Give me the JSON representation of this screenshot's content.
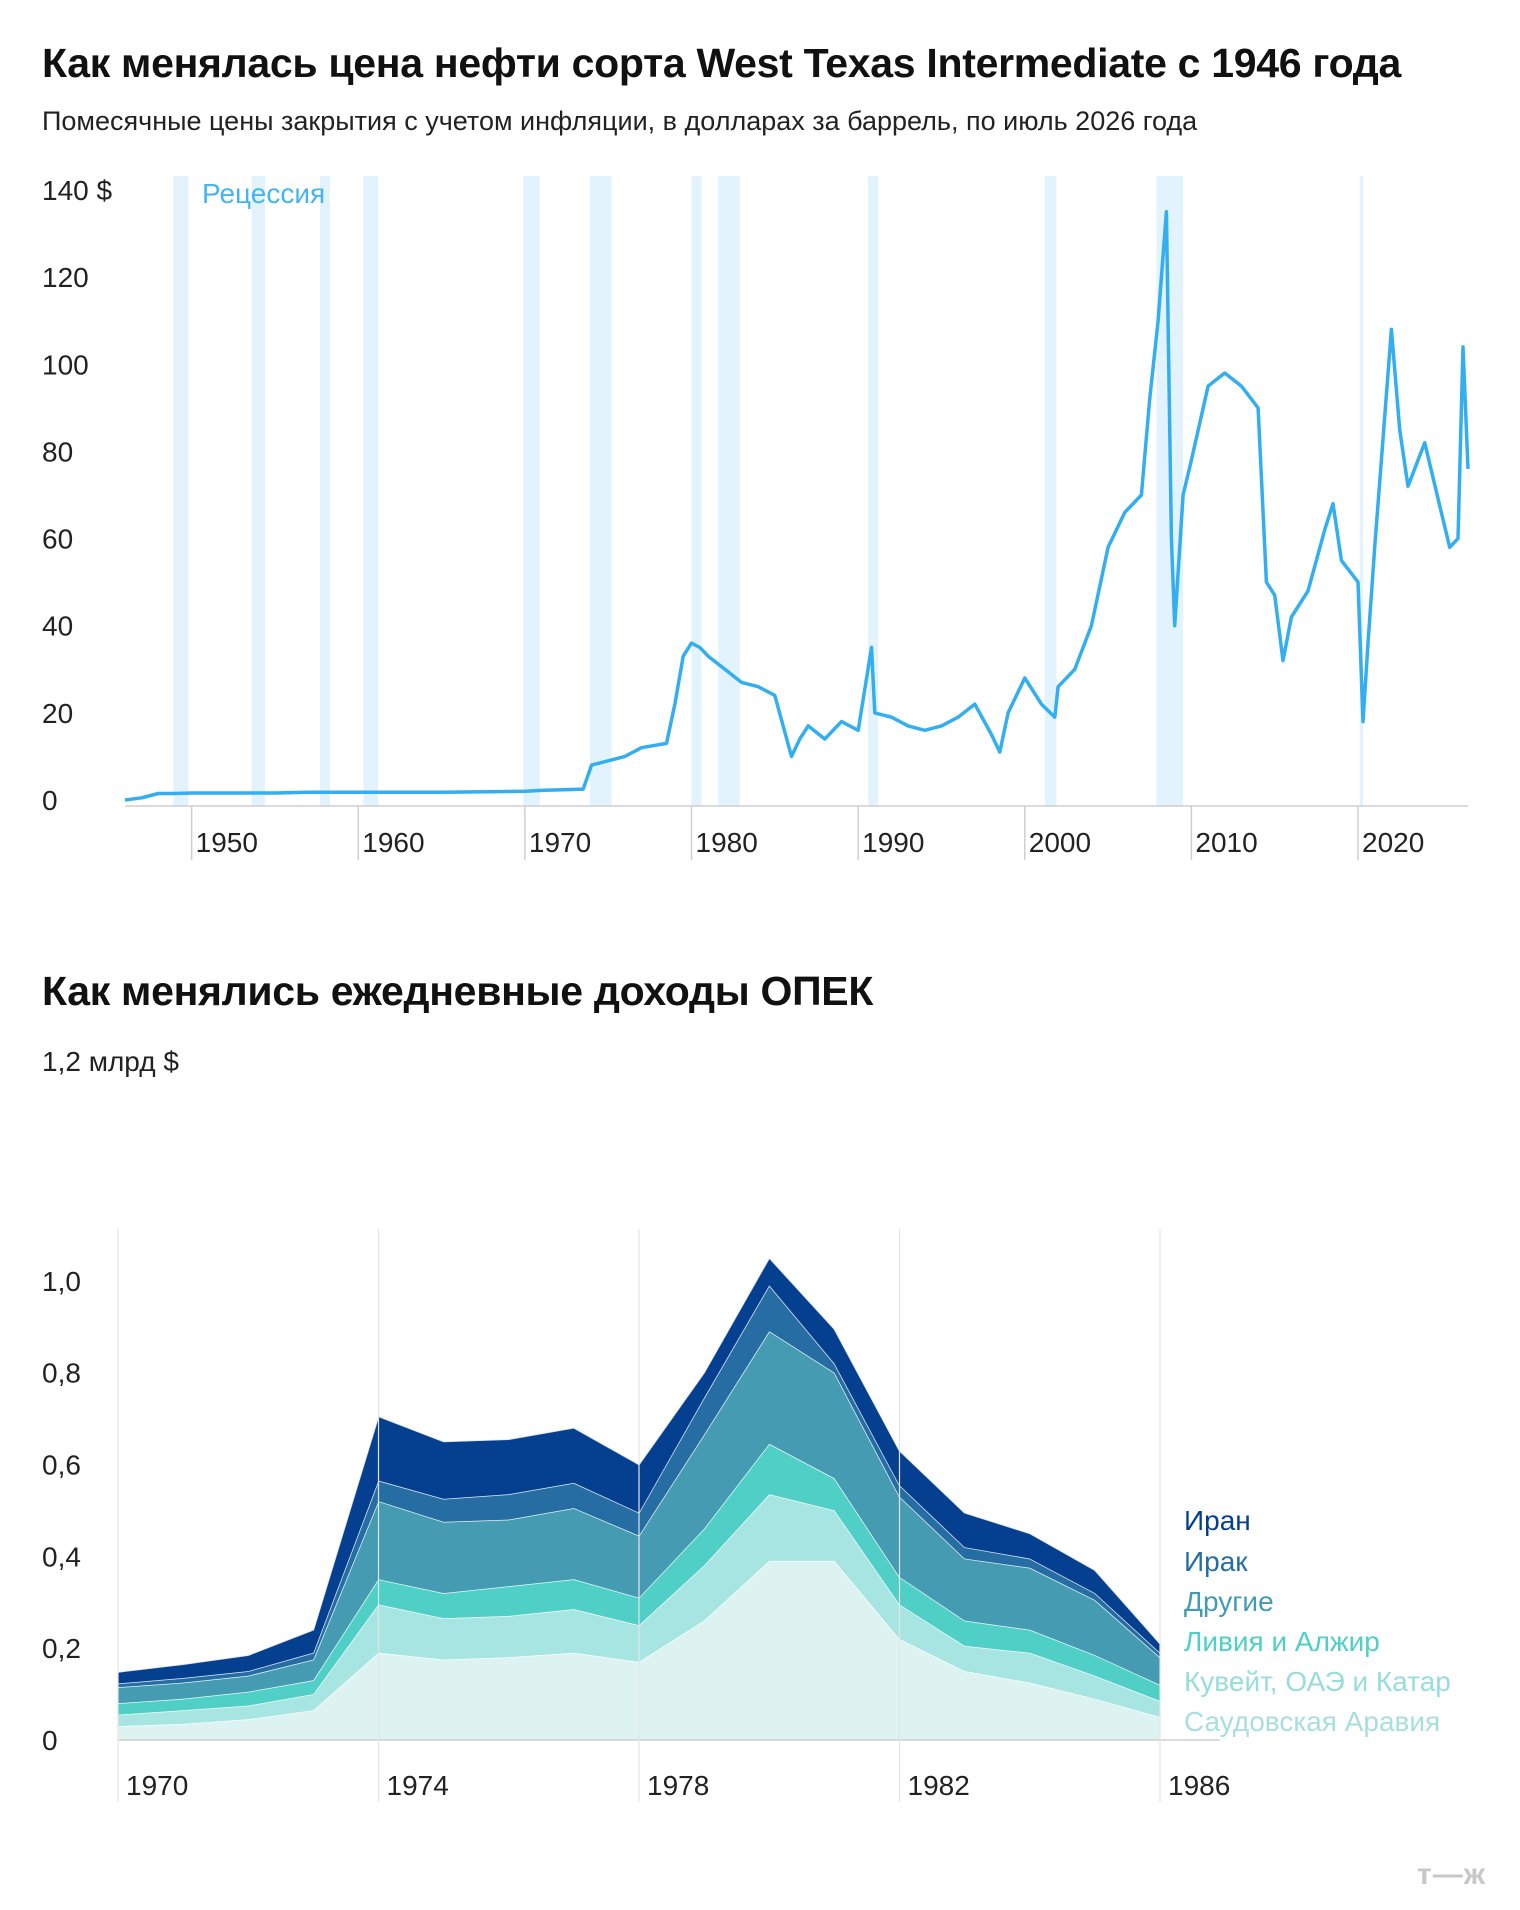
{
  "colors": {
    "line": "#33aef0",
    "recession": "#e3f3fd",
    "recession_label": "#45b4f2",
    "layers": [
      "#dcf3f2",
      "#a7e5e2",
      "#4fcfc5",
      "#459bb1",
      "#256da3",
      "#053f8f"
    ]
  },
  "chart_data": [
    {
      "type": "line",
      "title": "Как менялась цена нефти сорта West Texas Intermediate с 1946 года",
      "subtitle": "Помесячные цены закрытия с учетом инфляции, в долларах за баррель, по июль 2026 года",
      "recession_label": "Рецессия",
      "y_top_label": "140 $",
      "yticks": [
        0,
        20,
        40,
        60,
        80,
        100,
        120
      ],
      "xticks": [
        1950,
        1960,
        1970,
        1980,
        1990,
        2000,
        2010,
        2020
      ],
      "xlim": [
        1946,
        2026.6
      ],
      "ylim": [
        0,
        140
      ],
      "grid": false,
      "recessions": [
        [
          1948.9,
          1949.8
        ],
        [
          1953.6,
          1954.4
        ],
        [
          1957.7,
          1958.3
        ],
        [
          1960.3,
          1961.2
        ],
        [
          1969.9,
          1970.9
        ],
        [
          1973.9,
          1975.2
        ],
        [
          1980.0,
          1980.6
        ],
        [
          1981.6,
          1982.9
        ],
        [
          1990.6,
          1991.2
        ],
        [
          2001.2,
          2001.9
        ],
        [
          2007.9,
          2009.5
        ],
        [
          2020.1,
          2020.3
        ]
      ],
      "x": [
        1946,
        1947,
        1948,
        1949,
        1950,
        1955,
        1957,
        1960,
        1965,
        1970,
        1971,
        1973.5,
        1974,
        1975,
        1976,
        1977,
        1978.5,
        1979,
        1979.5,
        1980,
        1980.5,
        1981,
        1982,
        1983,
        1984,
        1985,
        1986,
        1986.5,
        1987,
        1988,
        1989,
        1990,
        1990.8,
        1991,
        1992,
        1993,
        1994,
        1995,
        1996,
        1997,
        1998,
        1998.5,
        1999,
        2000,
        2001,
        2001.8,
        2002,
        2003,
        2004,
        2005,
        2006,
        2007,
        2007.5,
        2008,
        2008.5,
        2008.8,
        2009,
        2009.5,
        2010,
        2011,
        2012,
        2013,
        2014,
        2014.5,
        2015,
        2015.5,
        2016,
        2017,
        2018,
        2018.5,
        2019,
        2020,
        2020.3,
        2020.6,
        2021,
        2022,
        2022.5,
        2023,
        2024,
        2025,
        2025.5,
        2026,
        2026.3,
        2026.6
      ],
      "y": [
        0,
        0.5,
        1.5,
        1.5,
        1.6,
        1.6,
        1.8,
        1.8,
        1.8,
        2.0,
        2.2,
        2.5,
        8,
        9,
        10,
        12,
        13,
        22,
        33,
        36,
        35,
        33,
        30,
        27,
        26,
        24,
        10,
        14,
        17,
        14,
        18,
        16,
        35,
        20,
        19,
        17,
        16,
        17,
        19,
        22,
        15,
        11,
        20,
        28,
        22,
        19,
        26,
        30,
        40,
        58,
        66,
        70,
        92,
        110,
        135,
        60,
        40,
        70,
        78,
        95,
        98,
        95,
        90,
        50,
        47,
        32,
        42,
        48,
        62,
        68,
        55,
        50,
        18,
        36,
        58,
        108,
        85,
        72,
        82,
        66,
        58,
        60,
        104,
        76
      ]
    },
    {
      "type": "area",
      "title": "Как менялись ежедневные доходы ОПЕК",
      "y_top_label": "1,2 млрд $",
      "yticks": [
        "0",
        "0,2",
        "0,4",
        "0,6",
        "0,8",
        "1,0"
      ],
      "ytick_values": [
        0,
        0.2,
        0.4,
        0.6,
        0.8,
        1.0
      ],
      "ylim": [
        0,
        1.2
      ],
      "xticks": [
        "1970",
        "1974",
        "1978",
        "1982",
        "1986"
      ],
      "xtick_values": [
        1970,
        1974,
        1978,
        1982,
        1986
      ],
      "x": [
        1970,
        1971,
        1972,
        1973,
        1974,
        1975,
        1976,
        1977,
        1978,
        1979,
        1980,
        1981,
        1982,
        1983,
        1984,
        1985,
        1986
      ],
      "series": [
        {
          "name": "Саудовская Аравия",
          "values": [
            0.03,
            0.035,
            0.045,
            0.065,
            0.19,
            0.175,
            0.18,
            0.19,
            0.17,
            0.26,
            0.39,
            0.39,
            0.22,
            0.15,
            0.125,
            0.09,
            0.05
          ]
        },
        {
          "name": "Кувейт, ОАЭ и Катар",
          "values": [
            0.025,
            0.03,
            0.03,
            0.035,
            0.105,
            0.09,
            0.09,
            0.095,
            0.08,
            0.12,
            0.145,
            0.11,
            0.075,
            0.055,
            0.065,
            0.05,
            0.035
          ]
        },
        {
          "name": "Ливия и Алжир",
          "values": [
            0.025,
            0.025,
            0.03,
            0.03,
            0.055,
            0.055,
            0.065,
            0.065,
            0.06,
            0.08,
            0.11,
            0.07,
            0.06,
            0.055,
            0.05,
            0.045,
            0.035
          ]
        },
        {
          "name": "Другие",
          "values": [
            0.035,
            0.035,
            0.035,
            0.045,
            0.17,
            0.155,
            0.145,
            0.155,
            0.135,
            0.205,
            0.245,
            0.23,
            0.175,
            0.135,
            0.135,
            0.12,
            0.06
          ]
        },
        {
          "name": "Ирак",
          "values": [
            0.008,
            0.01,
            0.01,
            0.015,
            0.045,
            0.05,
            0.055,
            0.055,
            0.05,
            0.08,
            0.1,
            0.02,
            0.025,
            0.025,
            0.02,
            0.015,
            0.01
          ]
        },
        {
          "name": "Иран",
          "values": [
            0.025,
            0.03,
            0.035,
            0.05,
            0.14,
            0.125,
            0.12,
            0.12,
            0.105,
            0.055,
            0.06,
            0.075,
            0.075,
            0.075,
            0.055,
            0.05,
            0.02
          ]
        }
      ],
      "legend": [
        "Иран",
        "Ирак",
        "Другие",
        "Ливия и Алжир",
        "Кувейт, ОАЭ и Катар",
        "Саудовская Аравия"
      ],
      "legend_position": "right"
    }
  ],
  "logo": "т—ж"
}
